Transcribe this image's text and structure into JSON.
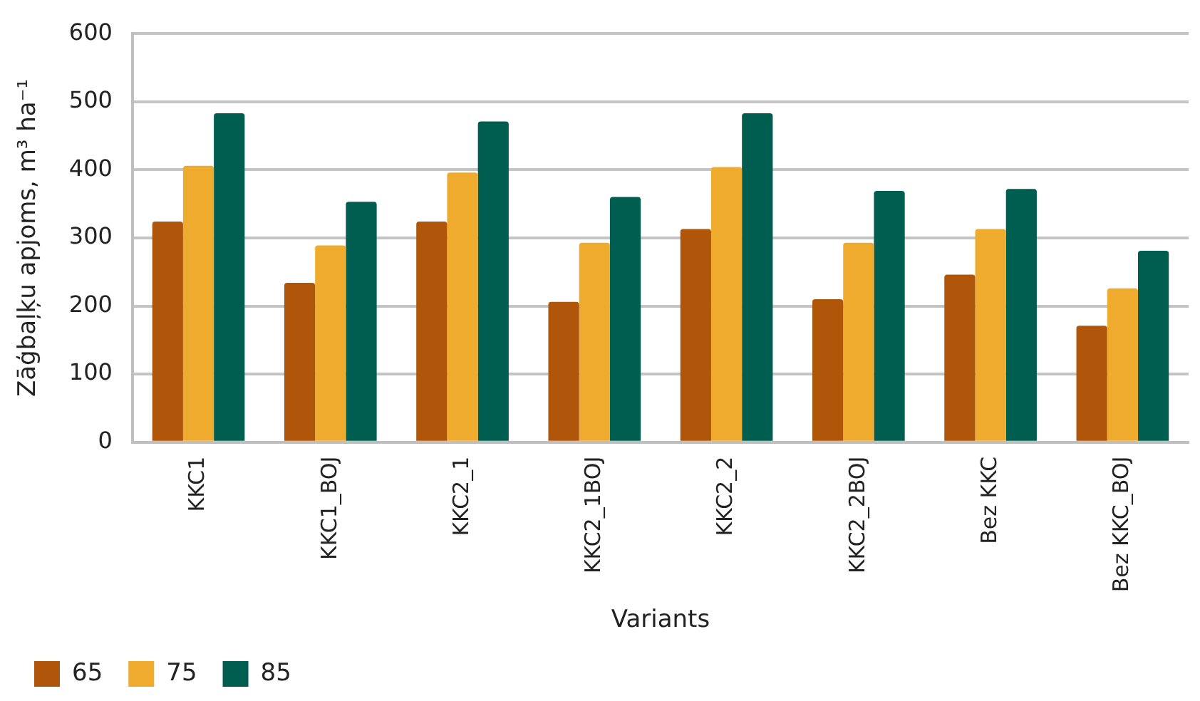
{
  "chart_data": {
    "type": "bar",
    "xlabel": "Variants",
    "ylabel": "Zāģbaļķu apjoms, m³ ha⁻¹",
    "categories": [
      "KKC1",
      "KKC1_BOJ",
      "KKC2_1",
      "KKC2_1BOJ",
      "KKC2_2",
      "KKC2_2BOJ",
      "Bez KKC",
      "Bez KKC_BOJ"
    ],
    "series": [
      {
        "name": "65",
        "color": "#b0560a",
        "values": [
          324,
          234,
          324,
          206,
          313,
          210,
          246,
          171
        ]
      },
      {
        "name": "75",
        "color": "#efab2e",
        "values": [
          406,
          289,
          396,
          293,
          404,
          293,
          313,
          226
        ]
      },
      {
        "name": "85",
        "color": "#005e50",
        "values": [
          483,
          353,
          471,
          360,
          483,
          369,
          372,
          281
        ]
      }
    ],
    "ylim": [
      0,
      600
    ],
    "yticks": [
      0,
      100,
      200,
      300,
      400,
      500,
      600
    ],
    "grid": "y",
    "legend": "bottom left"
  }
}
